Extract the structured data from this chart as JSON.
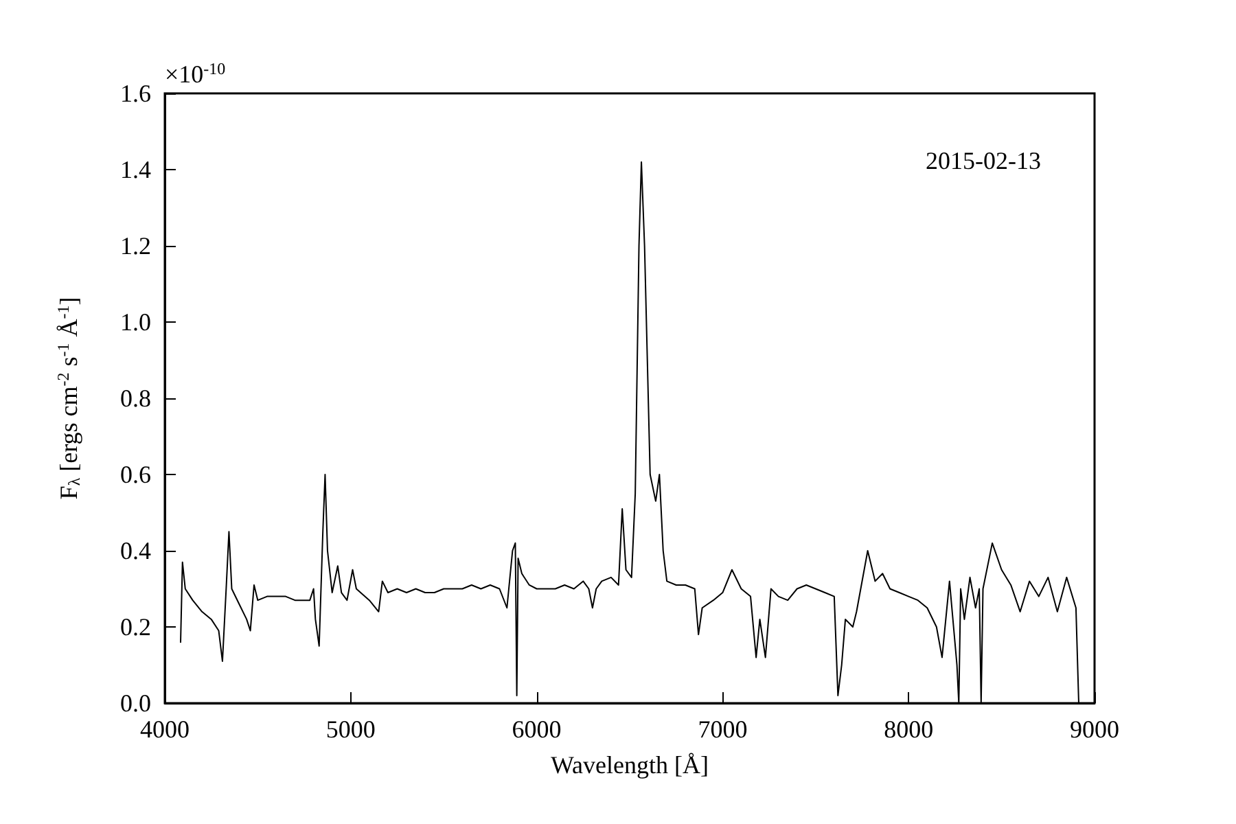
{
  "chart_data": {
    "type": "line",
    "xlabel": "Wavelength [Å]",
    "ylabel": "F$_{λ}$ [ergs cm$^{-2}$ s$^{-1}$ Å$^{-1}$]",
    "annotations": [
      "×10$^{-10}$",
      "2015-02-13"
    ],
    "x": [
      4085,
      4095,
      4110,
      4150,
      4200,
      4250,
      4290,
      4310,
      4330,
      4345,
      4360,
      4400,
      4440,
      4460,
      4480,
      4500,
      4550,
      4600,
      4650,
      4700,
      4780,
      4800,
      4810,
      4830,
      4850,
      4862,
      4875,
      4900,
      4930,
      4950,
      4980,
      5010,
      5030,
      5100,
      5150,
      5170,
      5200,
      5250,
      5300,
      5350,
      5400,
      5450,
      5500,
      5550,
      5600,
      5650,
      5700,
      5750,
      5800,
      5840,
      5870,
      5885,
      5893,
      5900,
      5920,
      5960,
      6000,
      6050,
      6100,
      6150,
      6200,
      6250,
      6280,
      6300,
      6320,
      6350,
      6400,
      6440,
      6460,
      6480,
      6510,
      6530,
      6550,
      6563,
      6580,
      6610,
      6640,
      6660,
      6680,
      6700,
      6750,
      6800,
      6850,
      6870,
      6890,
      6950,
      7000,
      7050,
      7100,
      7150,
      7180,
      7200,
      7230,
      7260,
      7300,
      7350,
      7400,
      7450,
      7500,
      7550,
      7600,
      7620,
      7640,
      7660,
      7700,
      7720,
      7780,
      7820,
      7860,
      7900,
      7950,
      8000,
      8050,
      8100,
      8150,
      8180,
      8220,
      8260,
      8270,
      8280,
      8300,
      8330,
      8360,
      8380,
      8390,
      8400,
      8450,
      8500,
      8550,
      8600,
      8650,
      8700,
      8750,
      8800,
      8850,
      8900,
      8915
    ],
    "series": [
      {
        "color": "#000000",
        "values": [
          0.16,
          0.37,
          0.3,
          0.27,
          0.24,
          0.22,
          0.19,
          0.11,
          0.3,
          0.45,
          0.3,
          0.26,
          0.22,
          0.19,
          0.31,
          0.27,
          0.28,
          0.28,
          0.28,
          0.27,
          0.27,
          0.3,
          0.22,
          0.15,
          0.45,
          0.6,
          0.4,
          0.29,
          0.36,
          0.29,
          0.27,
          0.35,
          0.3,
          0.27,
          0.24,
          0.32,
          0.29,
          0.3,
          0.29,
          0.3,
          0.29,
          0.29,
          0.3,
          0.3,
          0.3,
          0.31,
          0.3,
          0.31,
          0.3,
          0.25,
          0.4,
          0.42,
          0.02,
          0.38,
          0.34,
          0.31,
          0.3,
          0.3,
          0.3,
          0.31,
          0.3,
          0.32,
          0.3,
          0.25,
          0.3,
          0.32,
          0.33,
          0.31,
          0.51,
          0.35,
          0.33,
          0.55,
          1.2,
          1.42,
          1.2,
          0.6,
          0.53,
          0.6,
          0.4,
          0.32,
          0.31,
          0.31,
          0.3,
          0.18,
          0.25,
          0.27,
          0.29,
          0.35,
          0.3,
          0.28,
          0.12,
          0.22,
          0.12,
          0.3,
          0.28,
          0.27,
          0.3,
          0.31,
          0.3,
          0.29,
          0.28,
          0.02,
          0.1,
          0.22,
          0.2,
          0.24,
          0.4,
          0.32,
          0.34,
          0.3,
          0.29,
          0.28,
          0.27,
          0.25,
          0.2,
          0.12,
          0.32,
          0.1,
          0.0,
          0.3,
          0.22,
          0.33,
          0.25,
          0.3,
          0.0,
          0.3,
          0.42,
          0.35,
          0.31,
          0.24,
          0.32,
          0.28,
          0.33,
          0.24,
          0.33,
          0.25,
          0.0
        ]
      }
    ],
    "xlim": [
      4000,
      9000
    ],
    "xticks": [
      4000,
      5000,
      6000,
      7000,
      8000,
      9000
    ],
    "ylim": [
      0,
      1.6
    ],
    "yticks": [
      {
        "value": 0,
        "label": "0.0"
      },
      {
        "value": 0.2,
        "label": "0.2"
      },
      {
        "value": 0.4,
        "label": "0.4"
      },
      {
        "value": 0.6,
        "label": "0.6"
      },
      {
        "value": 0.8,
        "label": "0.8"
      },
      {
        "value": 1.0,
        "label": "1.0"
      },
      {
        "value": 1.2,
        "label": "1.2"
      },
      {
        "value": 1.4,
        "label": "1.4"
      },
      {
        "value": 1.6,
        "label": "1.6"
      }
    ],
    "grid": false,
    "marker": "none",
    "line_style": "solid"
  }
}
